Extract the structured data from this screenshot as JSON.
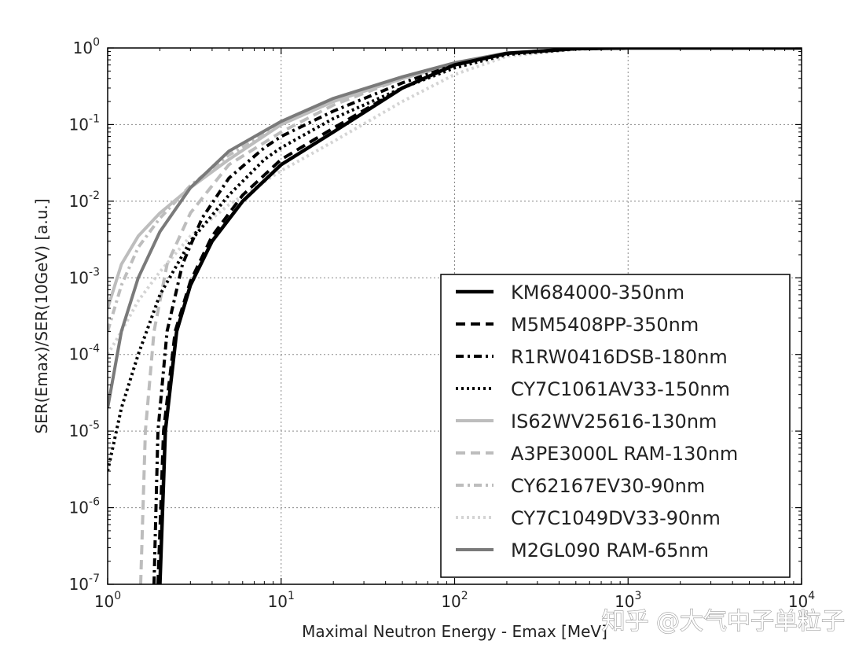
{
  "chart_data": {
    "type": "line",
    "title": "",
    "xlabel": "Maximal Neutron Energy - Emax [MeV]",
    "ylabel": "SER(Emax)/SER(10GeV) [a.u.]",
    "x_scale": "log",
    "y_scale": "log",
    "xlim": [
      1,
      10000
    ],
    "ylim": [
      1e-07,
      1
    ],
    "x_ticks": [
      {
        "base": "10",
        "exp": "0",
        "value": 1
      },
      {
        "base": "10",
        "exp": "1",
        "value": 10
      },
      {
        "base": "10",
        "exp": "2",
        "value": 100
      },
      {
        "base": "10",
        "exp": "3",
        "value": 1000
      },
      {
        "base": "10",
        "exp": "4",
        "value": 10000
      }
    ],
    "y_ticks": [
      {
        "base": "10",
        "exp": "0",
        "value": 1
      },
      {
        "base": "10",
        "exp": "-1",
        "value": 0.1
      },
      {
        "base": "10",
        "exp": "-2",
        "value": 0.01
      },
      {
        "base": "10",
        "exp": "-3",
        "value": 0.001
      },
      {
        "base": "10",
        "exp": "-4",
        "value": 0.0001
      },
      {
        "base": "10",
        "exp": "-5",
        "value": 1e-05
      },
      {
        "base": "10",
        "exp": "-6",
        "value": 1e-06
      },
      {
        "base": "10",
        "exp": "-7",
        "value": 1e-07
      }
    ],
    "grid": true,
    "legend_position": "lower-right",
    "series": [
      {
        "name": "KM684000-350nm",
        "color": "#000000",
        "style": "solid",
        "x": [
          2.0,
          2.15,
          2.5,
          3.0,
          4.0,
          6.0,
          10,
          20,
          50,
          100,
          200,
          500,
          1000,
          10000
        ],
        "y": [
          1e-07,
          1e-05,
          0.0002,
          0.0008,
          0.003,
          0.01,
          0.03,
          0.08,
          0.3,
          0.6,
          0.85,
          0.98,
          1.0,
          1.0
        ]
      },
      {
        "name": "M5M5408PP-350nm",
        "color": "#000000",
        "style": "dashed",
        "x": [
          1.95,
          2.1,
          2.45,
          3.0,
          4.0,
          6.0,
          10,
          20,
          50,
          100,
          200,
          500,
          1000,
          10000
        ],
        "y": [
          1e-07,
          1e-05,
          0.0002,
          0.0009,
          0.0035,
          0.012,
          0.035,
          0.09,
          0.3,
          0.6,
          0.85,
          0.98,
          1.0,
          1.0
        ]
      },
      {
        "name": "R1RW0416DSB-180nm",
        "color": "#000000",
        "style": "dashdot",
        "x": [
          1.85,
          1.95,
          2.2,
          2.7,
          3.5,
          5.0,
          8.0,
          10,
          20,
          50,
          100,
          200,
          500,
          1000,
          10000
        ],
        "y": [
          1e-07,
          1e-05,
          0.0002,
          0.0015,
          0.006,
          0.02,
          0.05,
          0.07,
          0.15,
          0.35,
          0.6,
          0.85,
          0.98,
          1.0,
          1.0
        ]
      },
      {
        "name": "CY7C1061AV33-150nm",
        "color": "#000000",
        "style": "dotted",
        "x": [
          1.0,
          1.2,
          1.5,
          2.0,
          3.0,
          5.0,
          8.0,
          10,
          20,
          50,
          100,
          200,
          500,
          1000,
          10000
        ],
        "y": [
          3e-06,
          2e-05,
          0.0001,
          0.0006,
          0.003,
          0.012,
          0.035,
          0.05,
          0.12,
          0.3,
          0.55,
          0.82,
          0.97,
          1.0,
          1.0
        ]
      },
      {
        "name": "IS62WV25616-130nm",
        "color": "#bdbdbd",
        "style": "solid",
        "x": [
          1.0,
          1.2,
          1.5,
          2.0,
          3.0,
          5.0,
          10,
          20,
          50,
          100,
          200,
          500,
          1000,
          10000
        ],
        "y": [
          0.0004,
          0.0015,
          0.0035,
          0.007,
          0.015,
          0.035,
          0.1,
          0.2,
          0.4,
          0.62,
          0.85,
          0.98,
          1.0,
          1.0
        ]
      },
      {
        "name": "A3PE3000L RAM-130nm",
        "color": "#bdbdbd",
        "style": "dashed",
        "x": [
          1.55,
          1.65,
          1.85,
          2.2,
          3.0,
          5.0,
          10,
          20,
          50,
          100,
          200,
          500,
          1000,
          10000
        ],
        "y": [
          1e-07,
          1e-05,
          0.0002,
          0.0015,
          0.007,
          0.03,
          0.08,
          0.18,
          0.4,
          0.62,
          0.85,
          0.98,
          1.0,
          1.0
        ]
      },
      {
        "name": "CY62167EV30-90nm",
        "color": "#bdbdbd",
        "style": "dashdot",
        "x": [
          1.0,
          1.2,
          1.5,
          2.0,
          3.0,
          5.0,
          10,
          20,
          50,
          100,
          200,
          500,
          1000,
          10000
        ],
        "y": [
          0.0002,
          0.0008,
          0.0025,
          0.006,
          0.016,
          0.04,
          0.1,
          0.2,
          0.4,
          0.62,
          0.85,
          0.98,
          1.0,
          1.0
        ]
      },
      {
        "name": "CY7C1049DV33-90nm",
        "color": "#d4d4d4",
        "style": "dotted",
        "x": [
          1.0,
          1.2,
          1.5,
          2.0,
          3.0,
          5.0,
          10,
          20,
          50,
          100,
          200,
          500,
          1000,
          10000
        ],
        "y": [
          0.0001,
          0.0002,
          0.0005,
          0.0012,
          0.0035,
          0.009,
          0.025,
          0.06,
          0.2,
          0.45,
          0.78,
          0.96,
          1.0,
          1.0
        ]
      },
      {
        "name": "M2GL090 RAM-65nm",
        "color": "#7a7a7a",
        "style": "solid",
        "x": [
          1.0,
          1.2,
          1.5,
          2.0,
          3.0,
          5.0,
          10,
          20,
          50,
          100,
          200,
          500,
          1000,
          10000
        ],
        "y": [
          2e-05,
          0.0002,
          0.001,
          0.004,
          0.015,
          0.045,
          0.11,
          0.22,
          0.42,
          0.64,
          0.86,
          0.98,
          1.0,
          1.0
        ]
      }
    ]
  },
  "watermark": {
    "text": "知乎 @大气中子单粒子"
  }
}
